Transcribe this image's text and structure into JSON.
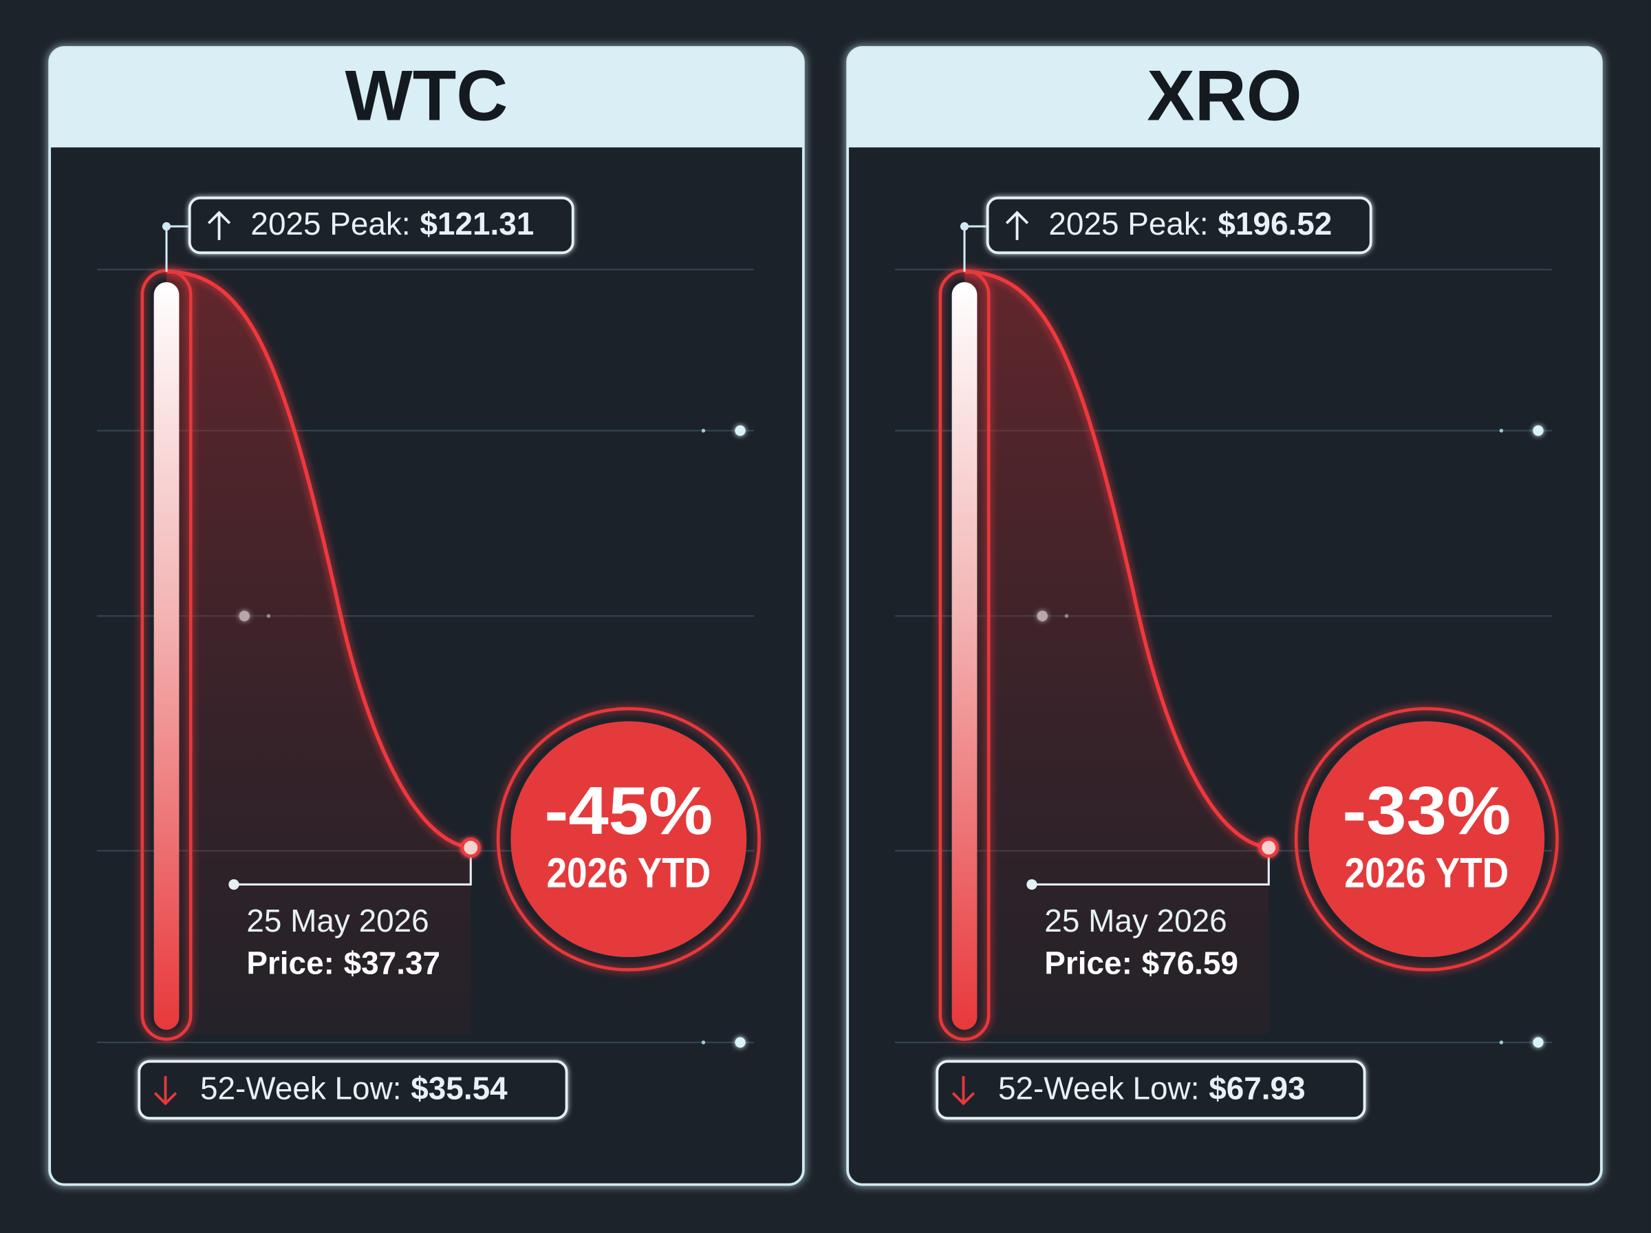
{
  "panels": [
    {
      "ticker": "WTC",
      "peak_label": "2025 Peak:",
      "peak_value": "$121.31",
      "change": "-45%",
      "change_period": "2026 YTD",
      "date": "25 May 2026",
      "price_label": "Price:",
      "price_value": "$37.37",
      "low_label": "52-Week Low:",
      "low_value": "$35.54"
    },
    {
      "ticker": "XRO",
      "peak_label": "2025 Peak:",
      "peak_value": "$196.52",
      "change": "-33%",
      "change_period": "2026 YTD",
      "date": "25 May 2026",
      "price_label": "Price:",
      "price_value": "$76.59",
      "low_label": "52-Week Low:",
      "low_value": "$67.93"
    }
  ]
}
